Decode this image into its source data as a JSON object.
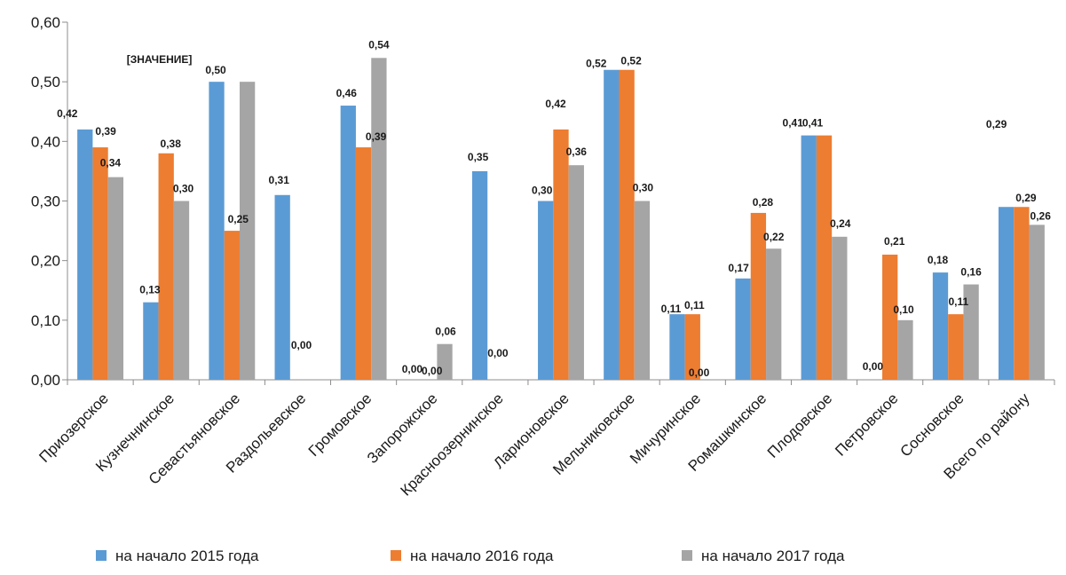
{
  "chart_data": {
    "type": "bar",
    "ylim": [
      0,
      0.6
    ],
    "yticks": [
      "0,00",
      "0,10",
      "0,20",
      "0,30",
      "0,40",
      "0,50",
      "0,60"
    ],
    "grid": false,
    "legend_position": "bottom",
    "categories": [
      "Приозерское",
      "Кузнечнинское",
      "Севастьяновское",
      "Раздольевское",
      "Громовское",
      "Запорожское",
      "Красноозернинское",
      "Ларионовское",
      "Мельниковское",
      "Мичуринское",
      "Ромашкинское",
      "Плодовское",
      "Петровское",
      "Сосновское",
      "Всего по району"
    ],
    "series": [
      {
        "name": "на начало 2015 года",
        "color": "#5B9BD5",
        "values": [
          0.42,
          0.13,
          0.5,
          0.31,
          0.46,
          0.0,
          0.35,
          0.3,
          0.52,
          0.11,
          0.17,
          0.41,
          0.0,
          0.18,
          0.29
        ],
        "labels": [
          "0,42",
          "0,13",
          "0,50",
          "0,31",
          "0,46",
          "0,00",
          "0,35",
          "0,30",
          "0,52",
          "0,11",
          "0,17",
          "0,41",
          "0,00",
          "0,18",
          "0,29"
        ]
      },
      {
        "name": "на начало 2016 года",
        "color": "#ED7D31",
        "values": [
          0.39,
          0.38,
          0.25,
          0.0,
          0.39,
          0.0,
          0.0,
          0.42,
          0.52,
          0.11,
          0.28,
          0.41,
          0.21,
          0.11,
          0.29
        ],
        "labels": [
          "0,39",
          "0,38",
          "0,25",
          "0,00",
          "0,39",
          "0,00",
          "0,00",
          "0,42",
          "0,52",
          "0,11",
          "0,28",
          "0,41",
          "0,21",
          "0,11",
          "0,29"
        ]
      },
      {
        "name": "на начало 2017 года",
        "color": "#A5A5A5",
        "values": [
          0.34,
          0.3,
          0.5,
          null,
          0.54,
          0.06,
          null,
          0.36,
          0.3,
          0.0,
          0.22,
          0.24,
          0.1,
          0.16,
          0.26
        ],
        "labels": [
          "0,34",
          "0,30",
          "[ЗНАЧЕНИЕ]",
          "",
          "0,54",
          "0,06",
          "",
          "0,36",
          "0,30",
          "0,00",
          "0,22",
          "0,24",
          "0,10",
          "0,16",
          "0,26"
        ]
      }
    ]
  }
}
